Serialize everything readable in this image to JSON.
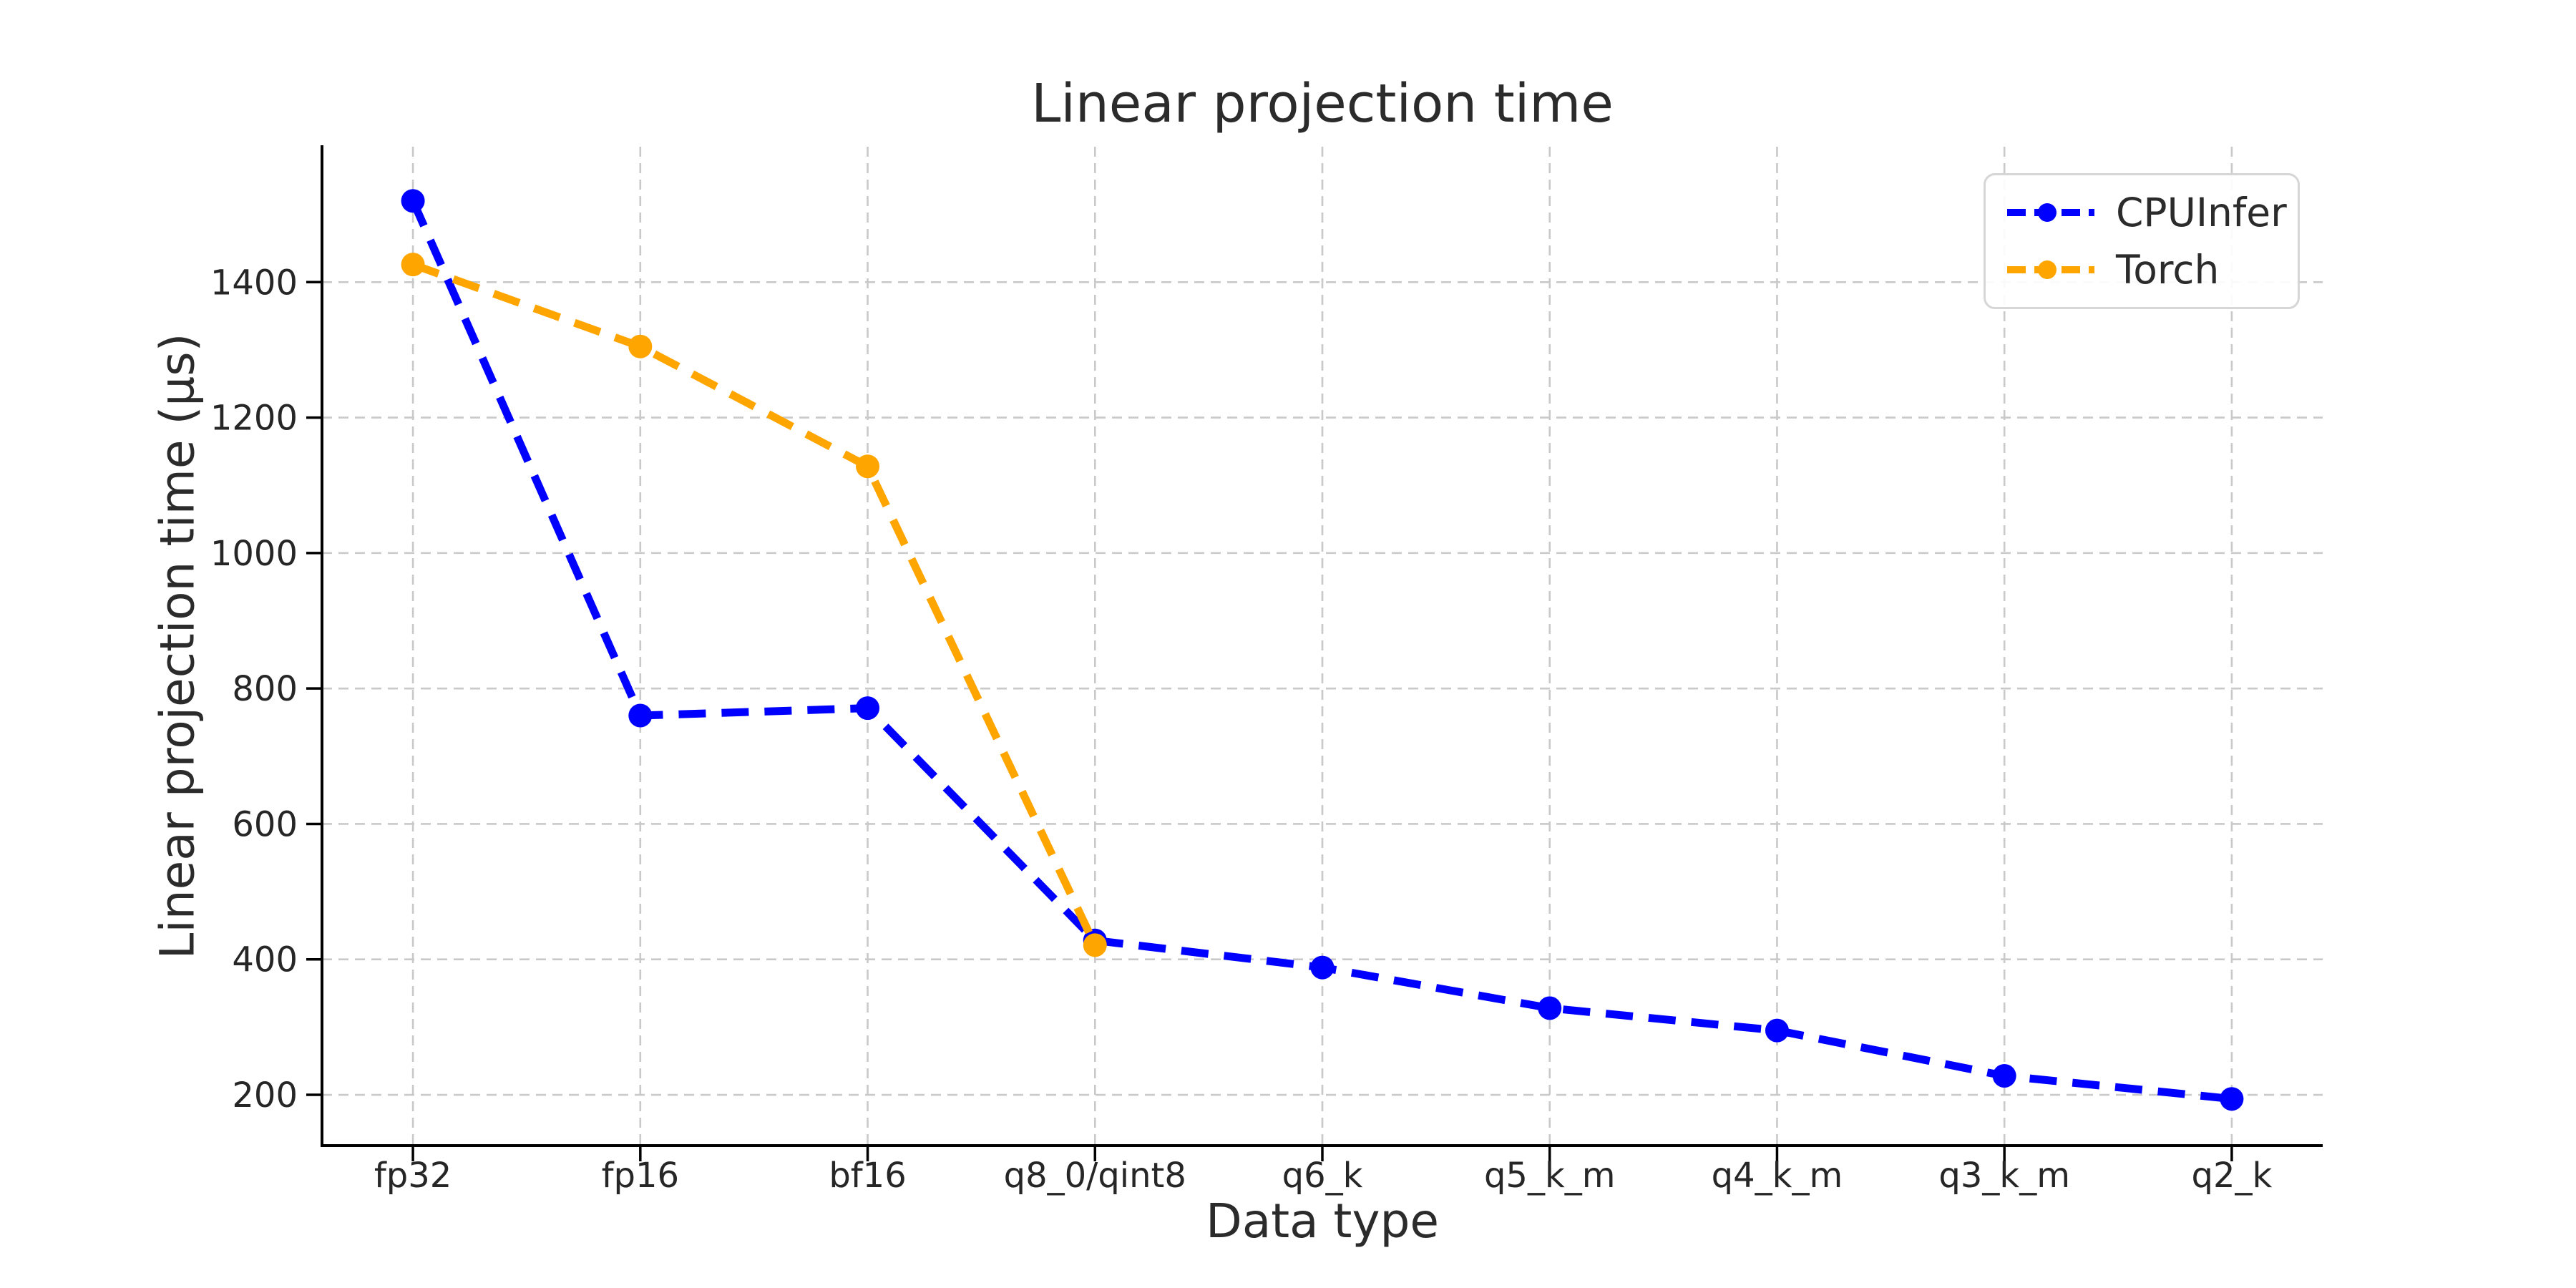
{
  "figure": {
    "title": "Linear projection time",
    "x_axis_label": "Data type",
    "y_axis_label": "Linear projection time (µs)"
  },
  "chart_data": {
    "type": "line",
    "title": "Linear projection time",
    "xlabel": "Data type",
    "ylabel": "Linear projection time (µs)",
    "categories": [
      "fp32",
      "fp16",
      "bf16",
      "q8_0/qint8",
      "q6_k",
      "q5_k_m",
      "q4_k_m",
      "q3_k_m",
      "q2_k"
    ],
    "series": [
      {
        "name": "CPUInfer",
        "color": "#0000ff",
        "linestyle": "dashed",
        "marker": "circle",
        "values": [
          1520,
          760,
          771,
          428,
          388,
          328,
          295,
          228,
          194
        ]
      },
      {
        "name": "Torch",
        "color": "#ffa500",
        "linestyle": "dashed",
        "marker": "circle",
        "values": [
          1426,
          1305,
          1128,
          421,
          null,
          null,
          null,
          null,
          null
        ]
      }
    ],
    "yticks": [
      200,
      400,
      600,
      800,
      1000,
      1200,
      1400
    ],
    "ylim": [
      125,
      1600
    ],
    "grid": true,
    "grid_style": "dashed",
    "legend_position": "upper right"
  },
  "colors": {
    "grid": "#c9c9c9",
    "axis": "#000000",
    "text": "#2b2b2b",
    "background": "#ffffff"
  }
}
